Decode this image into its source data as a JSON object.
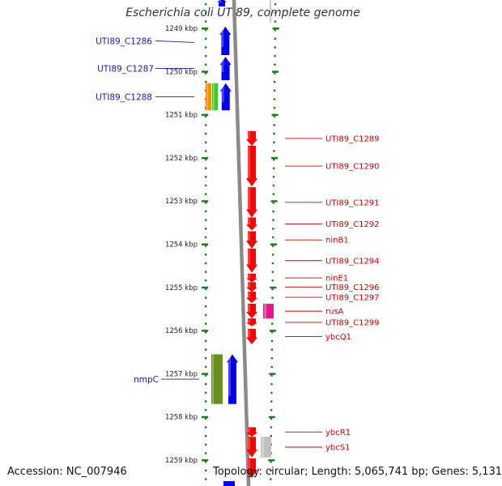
{
  "title": "Escherichia coli UTI89, complete genome",
  "footer": {
    "accession": "Accession: NC_007946",
    "topology": "Topology: circular; Length: 5,065,741 bp; Genes: 5,131"
  },
  "colors": {
    "ruler_ticks": "#1f7a1f",
    "backbone": "#8a8a8a",
    "left_gene": "#0000ee",
    "left_label": "#1a1aa6",
    "right_gene": "#ff0000",
    "right_label": "#cc0000",
    "orange": "#ff8800",
    "green": "#33cc33",
    "olive": "#6b8e23",
    "magenta": "#e8188c",
    "grey": "#c0c0c0"
  },
  "ruler": {
    "unit": "kbp",
    "ticks": [
      {
        "label": "1249 kbp",
        "kbp": 1249
      },
      {
        "label": "1250 kbp",
        "kbp": 1250
      },
      {
        "label": "1251 kbp",
        "kbp": 1251
      },
      {
        "label": "1252 kbp",
        "kbp": 1252
      },
      {
        "label": "1253 kbp",
        "kbp": 1253
      },
      {
        "label": "1254 kbp",
        "kbp": 1254
      },
      {
        "label": "1255 kbp",
        "kbp": 1255
      },
      {
        "label": "1256 kbp",
        "kbp": 1256
      },
      {
        "label": "1257 kbp",
        "kbp": 1257
      },
      {
        "label": "1258 kbp",
        "kbp": 1258
      },
      {
        "label": "1259 kbp",
        "kbp": 1259
      }
    ]
  },
  "left_genes": [
    {
      "label": "UTI89_C1286",
      "start": 1248.96,
      "end": 1249.62
    },
    {
      "label": "UTI89_C1287",
      "start": 1249.66,
      "end": 1250.2
    },
    {
      "label": "UTI89_C1288",
      "start": 1250.27,
      "end": 1250.9
    },
    {
      "label": "nmpC",
      "start": 1256.55,
      "end": 1257.7
    }
  ],
  "left_other_features": [
    {
      "track": "orange",
      "start": 1250.27,
      "end": 1250.9
    },
    {
      "track": "green",
      "start": 1250.27,
      "end": 1250.9
    },
    {
      "track": "olive",
      "start": 1256.55,
      "end": 1257.7
    }
  ],
  "right_genes": [
    {
      "label": "UTI89_C1289",
      "start": 1251.38,
      "end": 1251.72
    },
    {
      "label": "UTI89_C1290",
      "start": 1251.72,
      "end": 1252.66
    },
    {
      "label": "UTI89_C1291",
      "start": 1252.68,
      "end": 1253.38
    },
    {
      "label": "UTI89_C1292",
      "start": 1253.38,
      "end": 1253.68
    },
    {
      "label": "ninB1",
      "start": 1253.7,
      "end": 1254.1
    },
    {
      "label": "UTI89_C1294",
      "start": 1254.1,
      "end": 1254.66
    },
    {
      "label": "ninE1",
      "start": 1254.68,
      "end": 1254.88
    },
    {
      "label": "UTI89_C1296",
      "start": 1254.88,
      "end": 1255.1
    },
    {
      "label": "UTI89_C1297",
      "start": 1255.1,
      "end": 1255.36
    },
    {
      "label": "rusA",
      "start": 1255.38,
      "end": 1255.72
    },
    {
      "label": "UTI89_C1299",
      "start": 1255.72,
      "end": 1255.9
    },
    {
      "label": "ybcQ1",
      "start": 1255.96,
      "end": 1256.32
    },
    {
      "label": "ybcR1",
      "start": 1258.24,
      "end": 1258.46
    },
    {
      "label": "ybcS1",
      "start": 1258.46,
      "end": 1258.94
    }
  ],
  "right_other_features": [
    {
      "track": "magenta",
      "start": 1255.38,
      "end": 1255.72
    },
    {
      "track": "grey",
      "start": 1258.46,
      "end": 1258.94
    }
  ]
}
